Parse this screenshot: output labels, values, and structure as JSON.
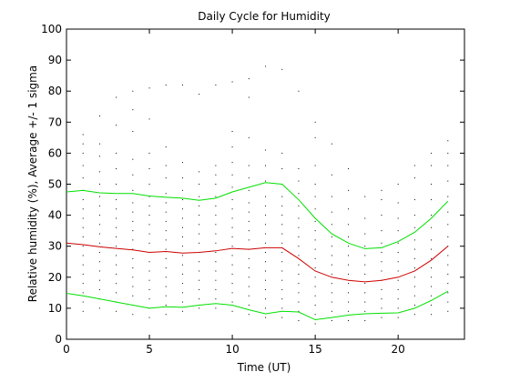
{
  "chart_data": {
    "type": "line",
    "title": "Daily Cycle for Humidity",
    "xlabel": "Time (UT)",
    "ylabel": "Relative humidity (%), Average +/- 1 sigma",
    "xlim": [
      0,
      24
    ],
    "ylim": [
      0,
      100
    ],
    "xticks": [
      0,
      5,
      10,
      15,
      20
    ],
    "yticks": [
      0,
      10,
      20,
      30,
      40,
      50,
      60,
      70,
      80,
      90,
      100
    ],
    "grid": false,
    "legend": "none",
    "x": [
      0,
      1,
      2,
      3,
      4,
      5,
      6,
      7,
      8,
      9,
      10,
      11,
      12,
      13,
      14,
      15,
      16,
      17,
      18,
      19,
      20,
      21,
      22,
      23
    ],
    "series": [
      {
        "role": "average",
        "color": "#cc0000",
        "values": [
          31,
          30.5,
          29.8,
          29.3,
          28.8,
          28,
          28.3,
          27.8,
          28,
          28.5,
          29.3,
          29,
          29.5,
          29.5,
          26,
          22,
          20,
          19,
          18.5,
          19,
          20,
          22,
          25.5,
          30
        ]
      },
      {
        "role": "average + 1 sigma",
        "color": "#00e000",
        "values": [
          47.5,
          48,
          47.2,
          47,
          47,
          46.2,
          45.8,
          45.5,
          44.8,
          45.5,
          47.5,
          49,
          50.5,
          50,
          45,
          39,
          34,
          31,
          29.2,
          29.5,
          31.5,
          34.5,
          39,
          44.5
        ]
      },
      {
        "role": "average - 1 sigma",
        "color": "#00e000",
        "values": [
          14.8,
          14,
          13,
          12,
          11,
          10,
          10.5,
          10.3,
          11,
          11.5,
          11,
          9.5,
          8.2,
          9,
          8.8,
          6.3,
          7,
          7.8,
          8.2,
          8.4,
          8.5,
          10,
          12.5,
          15.5
        ]
      }
    ],
    "scatter_color": "#000000",
    "scatter_points": [
      [
        0,
        12
      ],
      [
        0,
        16
      ],
      [
        0,
        20
      ],
      [
        0,
        25
      ],
      [
        0,
        28
      ],
      [
        0,
        33
      ],
      [
        0,
        37
      ],
      [
        0,
        41
      ],
      [
        0,
        45
      ],
      [
        0,
        50
      ],
      [
        0,
        55
      ],
      [
        1,
        9
      ],
      [
        1,
        12
      ],
      [
        1,
        15
      ],
      [
        1,
        18
      ],
      [
        1,
        21
      ],
      [
        1,
        24
      ],
      [
        1,
        27
      ],
      [
        1,
        30
      ],
      [
        1,
        33
      ],
      [
        1,
        36
      ],
      [
        1,
        39
      ],
      [
        1,
        42
      ],
      [
        1,
        45
      ],
      [
        1,
        48
      ],
      [
        1,
        52
      ],
      [
        1,
        56
      ],
      [
        1,
        60
      ],
      [
        1,
        63
      ],
      [
        1,
        66
      ],
      [
        2,
        10
      ],
      [
        2,
        13
      ],
      [
        2,
        16
      ],
      [
        2,
        19
      ],
      [
        2,
        22
      ],
      [
        2,
        25
      ],
      [
        2,
        28
      ],
      [
        2,
        31
      ],
      [
        2,
        34
      ],
      [
        2,
        37
      ],
      [
        2,
        40
      ],
      [
        2,
        43
      ],
      [
        2,
        46
      ],
      [
        2,
        50
      ],
      [
        2,
        54
      ],
      [
        2,
        59
      ],
      [
        2,
        63
      ],
      [
        2,
        72
      ],
      [
        3,
        9
      ],
      [
        3,
        12
      ],
      [
        3,
        15
      ],
      [
        3,
        18
      ],
      [
        3,
        21
      ],
      [
        3,
        24
      ],
      [
        3,
        27
      ],
      [
        3,
        30
      ],
      [
        3,
        33
      ],
      [
        3,
        36
      ],
      [
        3,
        39
      ],
      [
        3,
        42
      ],
      [
        3,
        45
      ],
      [
        3,
        50
      ],
      [
        3,
        55
      ],
      [
        3,
        60
      ],
      [
        3,
        69
      ],
      [
        3,
        78
      ],
      [
        4,
        8
      ],
      [
        4,
        11
      ],
      [
        4,
        14
      ],
      [
        4,
        17
      ],
      [
        4,
        20
      ],
      [
        4,
        23
      ],
      [
        4,
        26
      ],
      [
        4,
        29
      ],
      [
        4,
        32
      ],
      [
        4,
        35
      ],
      [
        4,
        38
      ],
      [
        4,
        41
      ],
      [
        4,
        44
      ],
      [
        4,
        48
      ],
      [
        4,
        53
      ],
      [
        4,
        58
      ],
      [
        4,
        67
      ],
      [
        4,
        74
      ],
      [
        4,
        80
      ],
      [
        5,
        7
      ],
      [
        5,
        10
      ],
      [
        5,
        13
      ],
      [
        5,
        16
      ],
      [
        5,
        19
      ],
      [
        5,
        22
      ],
      [
        5,
        25
      ],
      [
        5,
        28
      ],
      [
        5,
        31
      ],
      [
        5,
        34
      ],
      [
        5,
        37
      ],
      [
        5,
        40
      ],
      [
        5,
        43
      ],
      [
        5,
        46
      ],
      [
        5,
        50
      ],
      [
        5,
        55
      ],
      [
        5,
        60
      ],
      [
        5,
        71
      ],
      [
        5,
        81
      ],
      [
        6,
        8
      ],
      [
        6,
        11
      ],
      [
        6,
        14
      ],
      [
        6,
        17
      ],
      [
        6,
        20
      ],
      [
        6,
        23
      ],
      [
        6,
        26
      ],
      [
        6,
        29
      ],
      [
        6,
        32
      ],
      [
        6,
        35
      ],
      [
        6,
        38
      ],
      [
        6,
        41
      ],
      [
        6,
        44
      ],
      [
        6,
        47
      ],
      [
        6,
        52
      ],
      [
        6,
        56
      ],
      [
        6,
        62
      ],
      [
        6,
        82
      ],
      [
        7,
        9
      ],
      [
        7,
        12
      ],
      [
        7,
        15
      ],
      [
        7,
        18
      ],
      [
        7,
        21
      ],
      [
        7,
        24
      ],
      [
        7,
        27
      ],
      [
        7,
        30
      ],
      [
        7,
        33
      ],
      [
        7,
        36
      ],
      [
        7,
        39
      ],
      [
        7,
        42
      ],
      [
        7,
        45
      ],
      [
        7,
        48
      ],
      [
        7,
        52
      ],
      [
        7,
        57
      ],
      [
        7,
        82
      ],
      [
        8,
        10
      ],
      [
        8,
        13
      ],
      [
        8,
        16
      ],
      [
        8,
        19
      ],
      [
        8,
        22
      ],
      [
        8,
        25
      ],
      [
        8,
        28
      ],
      [
        8,
        31
      ],
      [
        8,
        34
      ],
      [
        8,
        37
      ],
      [
        8,
        40
      ],
      [
        8,
        43
      ],
      [
        8,
        46
      ],
      [
        8,
        50
      ],
      [
        8,
        54
      ],
      [
        8,
        79
      ],
      [
        9,
        10
      ],
      [
        9,
        13
      ],
      [
        9,
        16
      ],
      [
        9,
        19
      ],
      [
        9,
        22
      ],
      [
        9,
        25
      ],
      [
        9,
        28
      ],
      [
        9,
        31
      ],
      [
        9,
        34
      ],
      [
        9,
        37
      ],
      [
        9,
        40
      ],
      [
        9,
        43
      ],
      [
        9,
        46
      ],
      [
        9,
        50
      ],
      [
        9,
        53
      ],
      [
        9,
        56
      ],
      [
        9,
        82
      ],
      [
        10,
        9
      ],
      [
        10,
        12
      ],
      [
        10,
        15
      ],
      [
        10,
        18
      ],
      [
        10,
        21
      ],
      [
        10,
        24
      ],
      [
        10,
        27
      ],
      [
        10,
        30
      ],
      [
        10,
        33
      ],
      [
        10,
        36
      ],
      [
        10,
        39
      ],
      [
        10,
        42
      ],
      [
        10,
        45
      ],
      [
        10,
        49
      ],
      [
        10,
        53
      ],
      [
        10,
        57
      ],
      [
        10,
        62
      ],
      [
        10,
        67
      ],
      [
        10,
        83
      ],
      [
        11,
        8
      ],
      [
        11,
        11
      ],
      [
        11,
        14
      ],
      [
        11,
        17
      ],
      [
        11,
        20
      ],
      [
        11,
        23
      ],
      [
        11,
        26
      ],
      [
        11,
        29
      ],
      [
        11,
        32
      ],
      [
        11,
        35
      ],
      [
        11,
        38
      ],
      [
        11,
        41
      ],
      [
        11,
        44
      ],
      [
        11,
        48
      ],
      [
        11,
        52
      ],
      [
        11,
        56
      ],
      [
        11,
        65
      ],
      [
        11,
        78
      ],
      [
        11,
        84
      ],
      [
        12,
        7
      ],
      [
        12,
        10
      ],
      [
        12,
        13
      ],
      [
        12,
        16
      ],
      [
        12,
        19
      ],
      [
        12,
        22
      ],
      [
        12,
        25
      ],
      [
        12,
        28
      ],
      [
        12,
        31
      ],
      [
        12,
        34
      ],
      [
        12,
        37
      ],
      [
        12,
        40
      ],
      [
        12,
        43
      ],
      [
        12,
        46
      ],
      [
        12,
        51
      ],
      [
        12,
        56
      ],
      [
        12,
        61
      ],
      [
        12,
        88
      ],
      [
        13,
        7
      ],
      [
        13,
        10
      ],
      [
        13,
        13
      ],
      [
        13,
        16
      ],
      [
        13,
        19
      ],
      [
        13,
        22
      ],
      [
        13,
        25
      ],
      [
        13,
        28
      ],
      [
        13,
        31
      ],
      [
        13,
        34
      ],
      [
        13,
        37
      ],
      [
        13,
        40
      ],
      [
        13,
        43
      ],
      [
        13,
        46
      ],
      [
        13,
        50
      ],
      [
        13,
        55
      ],
      [
        13,
        60
      ],
      [
        13,
        87
      ],
      [
        14,
        6
      ],
      [
        14,
        9
      ],
      [
        14,
        12
      ],
      [
        14,
        15
      ],
      [
        14,
        18
      ],
      [
        14,
        21
      ],
      [
        14,
        24
      ],
      [
        14,
        27
      ],
      [
        14,
        30
      ],
      [
        14,
        33
      ],
      [
        14,
        36
      ],
      [
        14,
        39
      ],
      [
        14,
        43
      ],
      [
        14,
        47
      ],
      [
        14,
        51
      ],
      [
        14,
        55
      ],
      [
        14,
        80
      ],
      [
        15,
        5
      ],
      [
        15,
        8
      ],
      [
        15,
        11
      ],
      [
        15,
        14
      ],
      [
        15,
        17
      ],
      [
        15,
        20
      ],
      [
        15,
        23
      ],
      [
        15,
        26
      ],
      [
        15,
        29
      ],
      [
        15,
        32
      ],
      [
        15,
        35
      ],
      [
        15,
        38
      ],
      [
        15,
        42
      ],
      [
        15,
        46
      ],
      [
        15,
        50
      ],
      [
        15,
        56
      ],
      [
        15,
        65
      ],
      [
        15,
        70
      ],
      [
        16,
        6
      ],
      [
        16,
        9
      ],
      [
        16,
        12
      ],
      [
        16,
        15
      ],
      [
        16,
        18
      ],
      [
        16,
        21
      ],
      [
        16,
        24
      ],
      [
        16,
        27
      ],
      [
        16,
        30
      ],
      [
        16,
        33
      ],
      [
        16,
        37
      ],
      [
        16,
        41
      ],
      [
        16,
        46
      ],
      [
        16,
        53
      ],
      [
        16,
        63
      ],
      [
        17,
        6
      ],
      [
        17,
        9
      ],
      [
        17,
        12
      ],
      [
        17,
        15
      ],
      [
        17,
        18
      ],
      [
        17,
        21
      ],
      [
        17,
        24
      ],
      [
        17,
        27
      ],
      [
        17,
        30
      ],
      [
        17,
        33
      ],
      [
        17,
        37
      ],
      [
        17,
        42
      ],
      [
        17,
        48
      ],
      [
        17,
        55
      ],
      [
        18,
        6
      ],
      [
        18,
        9
      ],
      [
        18,
        12
      ],
      [
        18,
        15
      ],
      [
        18,
        18
      ],
      [
        18,
        21
      ],
      [
        18,
        24
      ],
      [
        18,
        27
      ],
      [
        18,
        30
      ],
      [
        18,
        34
      ],
      [
        18,
        39
      ],
      [
        18,
        46
      ],
      [
        19,
        7
      ],
      [
        19,
        10
      ],
      [
        19,
        13
      ],
      [
        19,
        16
      ],
      [
        19,
        19
      ],
      [
        19,
        22
      ],
      [
        19,
        25
      ],
      [
        19,
        28
      ],
      [
        19,
        31
      ],
      [
        19,
        35
      ],
      [
        19,
        40
      ],
      [
        19,
        45
      ],
      [
        19,
        48
      ],
      [
        20,
        7
      ],
      [
        20,
        10
      ],
      [
        20,
        13
      ],
      [
        20,
        16
      ],
      [
        20,
        19
      ],
      [
        20,
        22
      ],
      [
        20,
        25
      ],
      [
        20,
        28
      ],
      [
        20,
        31
      ],
      [
        20,
        35
      ],
      [
        20,
        39
      ],
      [
        20,
        44
      ],
      [
        20,
        50
      ],
      [
        21,
        8
      ],
      [
        21,
        11
      ],
      [
        21,
        14
      ],
      [
        21,
        17
      ],
      [
        21,
        20
      ],
      [
        21,
        23
      ],
      [
        21,
        26
      ],
      [
        21,
        29
      ],
      [
        21,
        32
      ],
      [
        21,
        36
      ],
      [
        21,
        40
      ],
      [
        21,
        45
      ],
      [
        21,
        52
      ],
      [
        21,
        56
      ],
      [
        22,
        8
      ],
      [
        22,
        11
      ],
      [
        22,
        14
      ],
      [
        22,
        17
      ],
      [
        22,
        20
      ],
      [
        22,
        23
      ],
      [
        22,
        26
      ],
      [
        22,
        29
      ],
      [
        22,
        32
      ],
      [
        22,
        36
      ],
      [
        22,
        40
      ],
      [
        22,
        45
      ],
      [
        22,
        50
      ],
      [
        22,
        56
      ],
      [
        22,
        60
      ],
      [
        23,
        9
      ],
      [
        23,
        12
      ],
      [
        23,
        15
      ],
      [
        23,
        18
      ],
      [
        23,
        21
      ],
      [
        23,
        24
      ],
      [
        23,
        27
      ],
      [
        23,
        30
      ],
      [
        23,
        33
      ],
      [
        23,
        37
      ],
      [
        23,
        41
      ],
      [
        23,
        46
      ],
      [
        23,
        51
      ],
      [
        23,
        56
      ],
      [
        23,
        60
      ],
      [
        23,
        64
      ]
    ]
  }
}
